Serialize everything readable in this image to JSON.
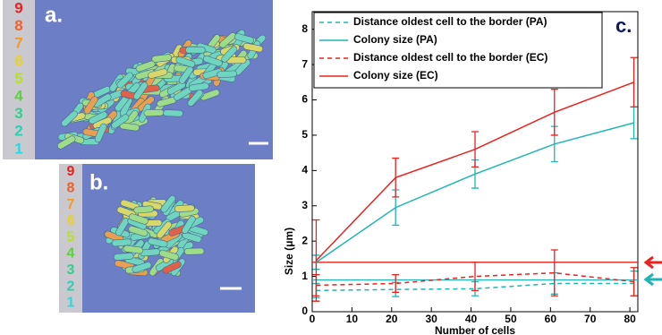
{
  "panel_labels": [
    "a.",
    "b."
  ],
  "colorbar_labels": [
    "9",
    "8",
    "7",
    "6",
    "5",
    "4",
    "3",
    "2",
    "1"
  ],
  "chart_data": {
    "type": "line",
    "panel_label": "c.",
    "xlabel": "Number of cells",
    "ylabel": "Size (μm)",
    "x": [
      1,
      21,
      41,
      61,
      81
    ],
    "xlim": [
      0,
      82
    ],
    "xticks": [
      0,
      10,
      20,
      30,
      40,
      50,
      60,
      70,
      80
    ],
    "ylim": [
      0,
      8.5
    ],
    "yticks": [
      0,
      1,
      2,
      3,
      4,
      5,
      6,
      7,
      8
    ],
    "legend": "upper left",
    "series": [
      {
        "name": "Distance oldest cell to the border (PA)",
        "color": "#1fb5b5",
        "dashed": true,
        "values": [
          0.6,
          0.63,
          0.65,
          0.8,
          0.8
        ],
        "errors": [
          0.2,
          0.2,
          0.2,
          0.3,
          0.35
        ]
      },
      {
        "name": "Colony size (PA)",
        "color": "#1fb5b5",
        "dashed": false,
        "values": [
          1.4,
          2.95,
          3.9,
          4.75,
          5.35
        ],
        "errors": [
          0.2,
          0.5,
          0.4,
          0.5,
          0.45
        ]
      },
      {
        "name": "Distance oldest cell to the border  (EC)",
        "color": "#e8221f",
        "dashed": true,
        "values": [
          0.75,
          0.8,
          1.0,
          1.1,
          0.85
        ],
        "errors": [
          0.3,
          0.25,
          0.4,
          0.65,
          0.4
        ]
      },
      {
        "name": "Colony size (EC)",
        "color": "#e8221f",
        "dashed": false,
        "values": [
          1.45,
          3.8,
          4.6,
          5.65,
          6.5
        ],
        "errors": [
          1.15,
          0.55,
          0.5,
          0.65,
          0.7
        ]
      }
    ],
    "reference_lines": [
      {
        "value": 1.4,
        "color": "#e8221f"
      },
      {
        "value": 0.9,
        "color": "#1fb5b5"
      }
    ]
  }
}
